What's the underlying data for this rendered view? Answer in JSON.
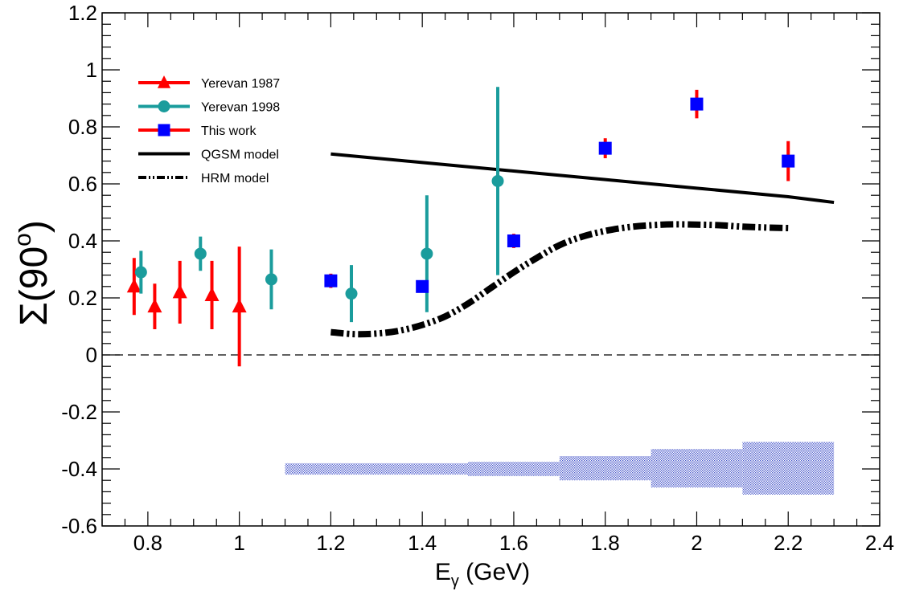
{
  "chart_data": {
    "type": "scatter",
    "title": "",
    "xlabel": {
      "main": "E",
      "sub": "γ",
      "rest": " (GeV)"
    },
    "ylabel": {
      "main": "Σ(90",
      "sup": "o",
      "end": ")"
    },
    "xlim": [
      0.7,
      2.4
    ],
    "ylim": [
      -0.6,
      1.2
    ],
    "xticks": [
      0.8,
      1.0,
      1.2,
      1.4,
      1.6,
      1.8,
      2.0,
      2.2,
      2.4
    ],
    "xtick_labels": [
      "0.8",
      "1",
      "1.2",
      "1.4",
      "1.6",
      "1.8",
      "2",
      "2.2",
      "2.4"
    ],
    "yticks": [
      -0.6,
      -0.4,
      -0.2,
      0,
      0.2,
      0.4,
      0.6,
      0.8,
      1.0,
      1.2
    ],
    "ytick_labels": [
      "-0.6",
      "-0.4",
      "-0.2",
      "0",
      "0.2",
      "0.4",
      "0.6",
      "0.8",
      "1",
      "1.2"
    ],
    "zero_line": 0,
    "grid": false,
    "legend_position": "top-left",
    "series": [
      {
        "name": "Yerevan 1987",
        "marker": "triangle",
        "color": "#ff0000",
        "bar_color": "#ff0000",
        "points": [
          {
            "x": 0.77,
            "y": 0.24,
            "err": 0.1
          },
          {
            "x": 0.815,
            "y": 0.17,
            "err": 0.08
          },
          {
            "x": 0.87,
            "y": 0.22,
            "err": 0.11
          },
          {
            "x": 0.94,
            "y": 0.21,
            "err": 0.12
          },
          {
            "x": 1.0,
            "y": 0.17,
            "err": 0.21
          }
        ]
      },
      {
        "name": "Yerevan 1998",
        "marker": "circle",
        "color": "#1a9c9c",
        "bar_color": "#1a9c9c",
        "points": [
          {
            "x": 0.785,
            "y": 0.29,
            "err": 0.075
          },
          {
            "x": 0.915,
            "y": 0.355,
            "err": 0.06
          },
          {
            "x": 1.07,
            "y": 0.265,
            "err": 0.105
          },
          {
            "x": 1.245,
            "y": 0.215,
            "err": 0.1
          },
          {
            "x": 1.41,
            "y": 0.355,
            "err": 0.205
          },
          {
            "x": 1.565,
            "y": 0.61,
            "err": 0.33
          }
        ]
      },
      {
        "name": "This work",
        "marker": "square",
        "color": "#0000ff",
        "bar_color": "#ff0000",
        "points": [
          {
            "x": 1.2,
            "y": 0.26,
            "err": 0.025
          },
          {
            "x": 1.4,
            "y": 0.24,
            "err": 0.02
          },
          {
            "x": 1.6,
            "y": 0.4,
            "err": 0.025
          },
          {
            "x": 1.8,
            "y": 0.725,
            "err": 0.035
          },
          {
            "x": 2.0,
            "y": 0.88,
            "err": 0.05
          },
          {
            "x": 2.2,
            "y": 0.68,
            "err": 0.07
          }
        ]
      }
    ],
    "models": [
      {
        "name": "QGSM model",
        "style": "solid",
        "color": "#000000",
        "x": [
          1.2,
          1.4,
          1.6,
          1.8,
          2.0,
          2.2,
          2.3
        ],
        "y": [
          0.705,
          0.675,
          0.645,
          0.615,
          0.585,
          0.555,
          0.535
        ]
      },
      {
        "name": "HRM model",
        "style": "dash-dot-dot",
        "color": "#000000",
        "x": [
          1.2,
          1.25,
          1.3,
          1.35,
          1.4,
          1.45,
          1.5,
          1.55,
          1.6,
          1.65,
          1.7,
          1.75,
          1.8,
          1.85,
          1.9,
          1.95,
          2.0,
          2.05,
          2.1,
          2.15,
          2.2
        ],
        "y": [
          0.08,
          0.073,
          0.075,
          0.085,
          0.105,
          0.135,
          0.18,
          0.235,
          0.29,
          0.34,
          0.385,
          0.415,
          0.435,
          0.448,
          0.455,
          0.458,
          0.457,
          0.455,
          0.45,
          0.447,
          0.445
        ]
      }
    ],
    "systematic_bands": {
      "color": "#4a5acb",
      "bins": [
        {
          "x0": 1.1,
          "x1": 1.5,
          "y0": -0.42,
          "y1": -0.38
        },
        {
          "x0": 1.5,
          "x1": 1.7,
          "y0": -0.425,
          "y1": -0.375
        },
        {
          "x0": 1.7,
          "x1": 1.9,
          "y0": -0.44,
          "y1": -0.355
        },
        {
          "x0": 1.9,
          "x1": 2.1,
          "y0": -0.465,
          "y1": -0.33
        },
        {
          "x0": 2.1,
          "x1": 2.3,
          "y0": -0.49,
          "y1": -0.305
        }
      ]
    }
  }
}
